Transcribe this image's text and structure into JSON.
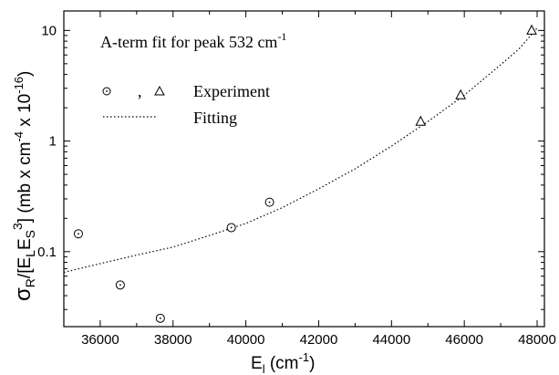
{
  "chart_data": {
    "type": "scatter",
    "title": "A-term fit for peak 532 cm",
    "title_sup": "-1",
    "xlabel": {
      "main": "E",
      "sub": "l",
      "rest": " (cm",
      "sup": "-1",
      "end": ")"
    },
    "ylabel": {
      "sigma": "σ",
      "sigma_sub": "R",
      "p1": "/[E",
      "p1_sub": "L",
      "p2": "E",
      "p2_sub": "S",
      "p2_sup": "3",
      "p3": "] (mb x cm",
      "p3_sup": "-4",
      "p4": " x 10",
      "p4_sup": "-16",
      "p5": ")"
    },
    "xlim": [
      35000,
      48200
    ],
    "ylim": [
      0.021,
      15
    ],
    "y_scale": "log",
    "x_ticks": [
      {
        "v": 36000,
        "label": "36000"
      },
      {
        "v": 38000,
        "label": "38000"
      },
      {
        "v": 40000,
        "label": "40000"
      },
      {
        "v": 42000,
        "label": "42000"
      },
      {
        "v": 44000,
        "label": "44000"
      },
      {
        "v": 46000,
        "label": "46000"
      },
      {
        "v": 48000,
        "label": "48000"
      }
    ],
    "y_ticks": [
      {
        "v": 0.1,
        "label": "0.1"
      },
      {
        "v": 1,
        "label": "1"
      },
      {
        "v": 10,
        "label": "10"
      }
    ],
    "series": [
      {
        "name": "Experiment",
        "marker": "circle",
        "points": [
          {
            "x": 35400,
            "y": 0.145
          },
          {
            "x": 36550,
            "y": 0.05
          },
          {
            "x": 37650,
            "y": 0.025
          },
          {
            "x": 39600,
            "y": 0.165
          },
          {
            "x": 40650,
            "y": 0.28
          }
        ]
      },
      {
        "name": "Experiment",
        "marker": "triangle",
        "points": [
          {
            "x": 44800,
            "y": 1.5
          },
          {
            "x": 45900,
            "y": 2.6
          },
          {
            "x": 47850,
            "y": 10.0
          }
        ]
      },
      {
        "name": "Fitting",
        "style": "dotted",
        "points": [
          {
            "x": 35000,
            "y": 0.065
          },
          {
            "x": 36000,
            "y": 0.078
          },
          {
            "x": 37000,
            "y": 0.093
          },
          {
            "x": 38000,
            "y": 0.11
          },
          {
            "x": 39000,
            "y": 0.14
          },
          {
            "x": 40000,
            "y": 0.18
          },
          {
            "x": 41000,
            "y": 0.25
          },
          {
            "x": 42000,
            "y": 0.37
          },
          {
            "x": 43000,
            "y": 0.56
          },
          {
            "x": 44000,
            "y": 0.9
          },
          {
            "x": 45000,
            "y": 1.5
          },
          {
            "x": 46000,
            "y": 2.6
          },
          {
            "x": 47000,
            "y": 4.9
          },
          {
            "x": 47500,
            "y": 6.8
          },
          {
            "x": 48000,
            "y": 10.5
          }
        ]
      }
    ],
    "legend": {
      "sep": ",",
      "experiment_label": "Experiment",
      "fitting_label": "Fitting",
      "placement": "top-left"
    },
    "colors": {
      "axis": "#000000",
      "markers": "#000000",
      "fit": "#000000"
    }
  }
}
